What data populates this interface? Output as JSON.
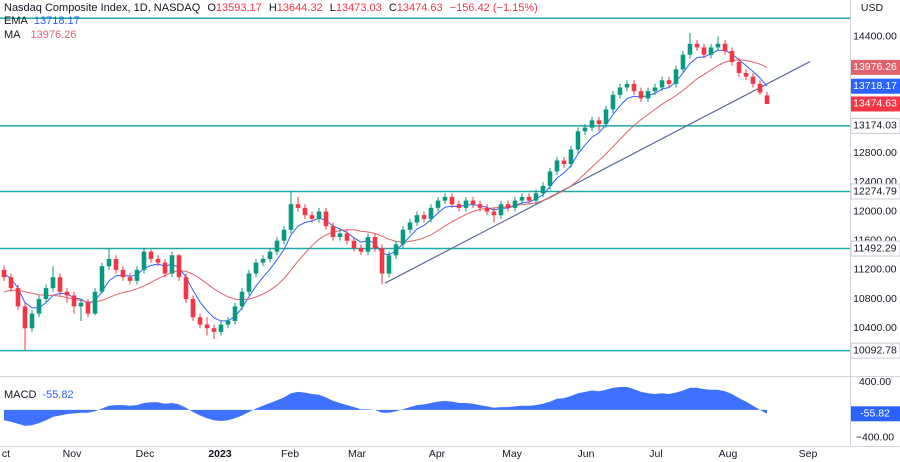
{
  "chart_data": {
    "type": "candlestick",
    "title": "Nasdaq Composite Index, 1D, NASDAQ",
    "currency": "USD",
    "ohlc_labels": [
      "O",
      "H",
      "L",
      "C"
    ],
    "change": "−156.42 (−1.15%)",
    "up_color": "#089981",
    "down_color": "#f23645",
    "categories": [
      "ct",
      "Nov",
      "Dec",
      "2023",
      "Feb",
      "Mar",
      "Apr",
      "May",
      "Jun",
      "Jul",
      "Aug",
      "Sep"
    ],
    "open": [
      11200,
      11100,
      10950,
      10700,
      10400,
      10600,
      10800,
      10950,
      11100,
      10900,
      10850,
      10700,
      10750,
      10600,
      10900,
      11250,
      11350,
      11200,
      11100,
      11050,
      11200,
      11450,
      11350,
      11300,
      11150,
      11400,
      11100,
      10800,
      10550,
      10450,
      10400,
      10350,
      10450,
      10500,
      10700,
      10900,
      11150,
      11300,
      11350,
      11450,
      11600,
      11750,
      12100,
      12050,
      11950,
      11900,
      12000,
      11800,
      11650,
      11700,
      11600,
      11500,
      11450,
      11650,
      11500,
      11150,
      11400,
      11550,
      11750,
      11850,
      11950,
      11900,
      12050,
      12150,
      12200,
      12100,
      12050,
      12150,
      12100,
      12050,
      12000,
      11950,
      12100,
      12050,
      12150,
      12200,
      12150,
      12250,
      12350,
      12550,
      12700,
      12650,
      12850,
      13100,
      13150,
      13250,
      13200,
      13400,
      13600,
      13700,
      13750,
      13650,
      13550,
      13650,
      13700,
      13800,
      13750,
      13950,
      14150,
      14300,
      14250,
      14150,
      14250,
      14300,
      14200,
      14050,
      13900,
      13850,
      13750,
      13593.17
    ],
    "high": [
      11260,
      11150,
      11000,
      10750,
      10650,
      10850,
      11000,
      11250,
      11150,
      10950,
      10900,
      10800,
      10800,
      10950,
      11300,
      11500,
      11400,
      11250,
      11150,
      11250,
      11500,
      11480,
      11400,
      11350,
      11450,
      11420,
      11150,
      10850,
      10600,
      10550,
      10450,
      10500,
      10550,
      10750,
      10950,
      11200,
      11350,
      11400,
      11500,
      11650,
      11800,
      12270,
      12200,
      12100,
      12000,
      12050,
      12050,
      11850,
      11750,
      11750,
      11650,
      11550,
      11700,
      11700,
      11550,
      11450,
      11600,
      11800,
      11900,
      12000,
      12000,
      12100,
      12200,
      12250,
      12250,
      12150,
      12200,
      12200,
      12150,
      12100,
      12050,
      12150,
      12150,
      12200,
      12250,
      12250,
      12300,
      12400,
      12600,
      12750,
      12750,
      12900,
      13150,
      13200,
      13300,
      13300,
      13450,
      13650,
      13750,
      13800,
      13800,
      13700,
      13700,
      13750,
      13850,
      13850,
      14000,
      14200,
      14450,
      14350,
      14300,
      14300,
      14400,
      14350,
      14250,
      14100,
      13950,
      13900,
      13800,
      13644.32
    ],
    "low": [
      11050,
      10900,
      10650,
      10100,
      10350,
      10550,
      10750,
      10900,
      10850,
      10750,
      10600,
      10500,
      10550,
      10580,
      10880,
      11200,
      11150,
      11050,
      11000,
      11000,
      11150,
      11300,
      11250,
      11100,
      11100,
      11050,
      10750,
      10500,
      10400,
      10300,
      10250,
      10300,
      10400,
      10450,
      10650,
      10850,
      11100,
      11250,
      11300,
      11400,
      11550,
      11700,
      12000,
      11900,
      11850,
      11850,
      11750,
      11600,
      11600,
      11550,
      11450,
      11400,
      11400,
      11450,
      11000,
      11100,
      11350,
      11500,
      11700,
      11800,
      11850,
      11850,
      12000,
      12100,
      12050,
      12000,
      12000,
      12050,
      12000,
      11950,
      11850,
      11900,
      12000,
      12000,
      12100,
      12100,
      12100,
      12200,
      12300,
      12500,
      12600,
      12600,
      12800,
      13050,
      13100,
      13100,
      13150,
      13350,
      13550,
      13650,
      13600,
      13500,
      13500,
      13600,
      13650,
      13700,
      13700,
      13900,
      14100,
      14200,
      14100,
      14100,
      14200,
      14150,
      14000,
      13850,
      13800,
      13700,
      13600,
      13473.03
    ],
    "close": [
      11100,
      10950,
      10700,
      10400,
      10600,
      10800,
      10950,
      11100,
      10900,
      10850,
      10700,
      10750,
      10600,
      10900,
      11250,
      11350,
      11200,
      11100,
      11050,
      11200,
      11450,
      11350,
      11300,
      11150,
      11400,
      11100,
      10800,
      10550,
      10450,
      10400,
      10350,
      10450,
      10500,
      10700,
      10900,
      11150,
      11300,
      11350,
      11450,
      11600,
      11750,
      12100,
      12050,
      11950,
      11900,
      12000,
      11800,
      11650,
      11700,
      11600,
      11500,
      11450,
      11650,
      11500,
      11150,
      11400,
      11550,
      11750,
      11850,
      11950,
      11900,
      12050,
      12150,
      12200,
      12100,
      12050,
      12150,
      12100,
      12050,
      12000,
      11950,
      12100,
      12050,
      12150,
      12200,
      12150,
      12250,
      12350,
      12550,
      12700,
      12650,
      12850,
      13100,
      13150,
      13250,
      13200,
      13400,
      13600,
      13700,
      13750,
      13650,
      13550,
      13650,
      13700,
      13800,
      13750,
      13950,
      14150,
      14300,
      14250,
      14150,
      14250,
      14300,
      14200,
      14050,
      13900,
      13850,
      13750,
      13631.05,
      13474.63
    ],
    "indicators": [
      {
        "name": "EMA",
        "color": "#2962ff",
        "values": [
          11150,
          11080,
          10950,
          10750,
          10680,
          10680,
          10750,
          10850,
          10880,
          10870,
          10820,
          10800,
          10740,
          10780,
          10900,
          11050,
          11120,
          11130,
          11110,
          11130,
          11220,
          11260,
          11280,
          11250,
          11280,
          11230,
          11100,
          10920,
          10760,
          10640,
          10540,
          10500,
          10500,
          10560,
          10680,
          10830,
          10980,
          11100,
          11210,
          11340,
          11480,
          11680,
          11800,
          11850,
          11870,
          11910,
          11880,
          11800,
          11760,
          11710,
          11640,
          11580,
          11600,
          11570,
          11420,
          11410,
          11460,
          11560,
          11660,
          11760,
          11810,
          11890,
          11980,
          12060,
          12075,
          12065,
          12090,
          12095,
          12080,
          12055,
          12020,
          12045,
          12047,
          12080,
          12120,
          12130,
          12170,
          12230,
          12340,
          12460,
          12530,
          12630,
          12790,
          12910,
          13020,
          13080,
          13190,
          13330,
          13450,
          13550,
          13580,
          13570,
          13590,
          13620,
          13680,
          13700,
          13780,
          13900,
          14030,
          14110,
          14120,
          14160,
          14210,
          14210,
          14160,
          14080,
          14000,
          13920,
          13830,
          13718.17
        ]
      },
      {
        "name": "MA",
        "color": "#e0626b",
        "values": [
          10900,
          10920,
          10920,
          10900,
          10880,
          10860,
          10850,
          10850,
          10840,
          10820,
          10800,
          10780,
          10760,
          10760,
          10780,
          10820,
          10860,
          10890,
          10910,
          10940,
          10980,
          11030,
          11080,
          11120,
          11170,
          11190,
          11180,
          11140,
          11080,
          11010,
          10940,
          10880,
          10830,
          10800,
          10790,
          10800,
          10830,
          10870,
          10920,
          10990,
          11080,
          11200,
          11320,
          11430,
          11530,
          11620,
          11680,
          11720,
          11740,
          11750,
          11750,
          11730,
          11720,
          11700,
          11660,
          11620,
          11590,
          11580,
          11590,
          11610,
          11640,
          11680,
          11740,
          11800,
          11860,
          11910,
          11960,
          12000,
          12030,
          12040,
          12050,
          12060,
          12065,
          12080,
          12095,
          12105,
          12120,
          12150,
          12190,
          12240,
          12290,
          12350,
          12430,
          12520,
          12610,
          12700,
          12790,
          12890,
          12990,
          13090,
          13180,
          13260,
          13330,
          13400,
          13470,
          13530,
          13590,
          13660,
          13740,
          13820,
          13880,
          13940,
          14000,
          14050,
          14070,
          14080,
          14070,
          14050,
          14020,
          13976.26
        ]
      }
    ],
    "levels": [
      13174.03,
      12274.79,
      11492.29,
      10092.78
    ],
    "upper_level": 14650,
    "level_color": "#1fa8a8",
    "trendline": {
      "start": 11018,
      "end": 14056,
      "color": "#5a6a96"
    },
    "ylim": [
      9800,
      14900
    ],
    "yticks": [
      {
        "value": 10400,
        "label": "10400.00"
      },
      {
        "value": 10800,
        "label": "10800.00"
      },
      {
        "value": 11200,
        "label": "11200.00"
      },
      {
        "value": 11600,
        "label": "11600.00"
      },
      {
        "value": 12000,
        "label": "12000.00"
      },
      {
        "value": 12400,
        "label": "12400.00"
      },
      {
        "value": 12800,
        "label": "12800.00"
      },
      {
        "value": 14400,
        "label": "14400.00"
      }
    ],
    "macd": {
      "name": "MACD",
      "color": "#2962ff",
      "ylim": [
        -520,
        460
      ],
      "yticks": [
        {
          "value": 400,
          "label": "400.00"
        },
        {
          "value": -400,
          "label": "−400.00"
        }
      ],
      "values": [
        -150,
        -170,
        -200,
        -230,
        -220,
        -190,
        -150,
        -100,
        -80,
        -60,
        -50,
        -40,
        -40,
        -20,
        20,
        60,
        70,
        70,
        60,
        70,
        100,
        110,
        110,
        90,
        100,
        80,
        30,
        -30,
        -80,
        -120,
        -150,
        -160,
        -150,
        -120,
        -80,
        -30,
        20,
        60,
        100,
        140,
        180,
        240,
        260,
        250,
        230,
        220,
        180,
        130,
        100,
        70,
        40,
        10,
        10,
        0,
        -40,
        -40,
        -20,
        10,
        40,
        70,
        80,
        100,
        120,
        130,
        120,
        100,
        100,
        90,
        70,
        50,
        30,
        40,
        40,
        50,
        60,
        60,
        70,
        90,
        120,
        160,
        170,
        200,
        240,
        260,
        280,
        270,
        290,
        320,
        330,
        330,
        300,
        260,
        240,
        230,
        240,
        230,
        250,
        280,
        320,
        320,
        300,
        290,
        290,
        270,
        230,
        170,
        120,
        60,
        0,
        -55.82
      ]
    }
  }
}
